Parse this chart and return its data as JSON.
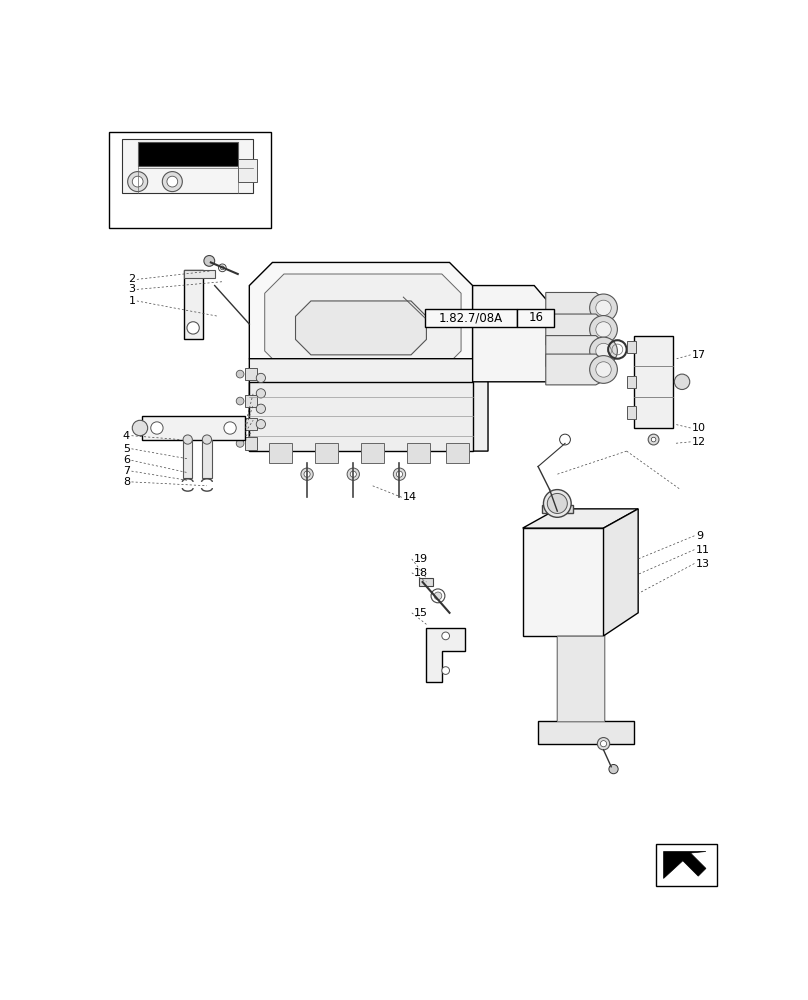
{
  "bg_color": "#ffffff",
  "line_color": "#000000",
  "gray_line": "#555555",
  "light_gray": "#cccccc",
  "label_fontsize": 8.0,
  "ref_box_text": "1.82.7/08A",
  "ref_box_num": "16"
}
